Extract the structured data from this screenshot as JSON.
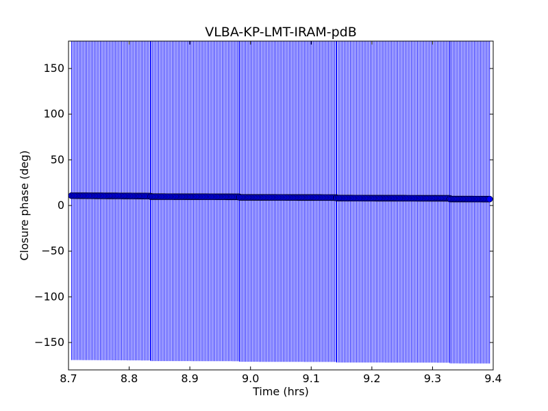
{
  "chart_data": {
    "type": "scatter",
    "title": "VLBA-KP-LMT-IRAM-pdB",
    "xlabel": "Time (hrs)",
    "ylabel": "Closure phase (deg)",
    "xlim": [
      8.7,
      9.4
    ],
    "ylim": [
      -180,
      180
    ],
    "xticks": [
      8.7,
      8.8,
      8.9,
      9.0,
      9.1,
      9.2,
      9.3,
      9.4
    ],
    "xtick_labels": [
      "8.7",
      "8.8",
      "8.9",
      "9.0",
      "9.1",
      "9.2",
      "9.3",
      "9.4"
    ],
    "yticks": [
      -150,
      -100,
      -50,
      0,
      50,
      100,
      150
    ],
    "ytick_labels": [
      "−150",
      "−100",
      "−50",
      "0",
      "50",
      "100",
      "150"
    ],
    "grid": false,
    "marker_color": "#0000ff",
    "errorbar_color": "#0000ff",
    "series": [
      {
        "segments": [
          {
            "x_start": 8.705,
            "x_end": 8.835,
            "y_start": 10.8,
            "y_end": 10.3
          },
          {
            "x_start": 8.836,
            "x_end": 8.981,
            "y_start": 9.7,
            "y_end": 9.5
          },
          {
            "x_start": 8.982,
            "x_end": 9.141,
            "y_start": 8.9,
            "y_end": 8.7
          },
          {
            "x_start": 9.142,
            "x_end": 9.328,
            "y_start": 8.1,
            "y_end": 7.9
          },
          {
            "x_start": 9.329,
            "x_end": 9.394,
            "y_start": 7.1,
            "y_end": 7.0
          }
        ],
        "point_spacing": 0.0025,
        "yerr": 180
      }
    ]
  }
}
